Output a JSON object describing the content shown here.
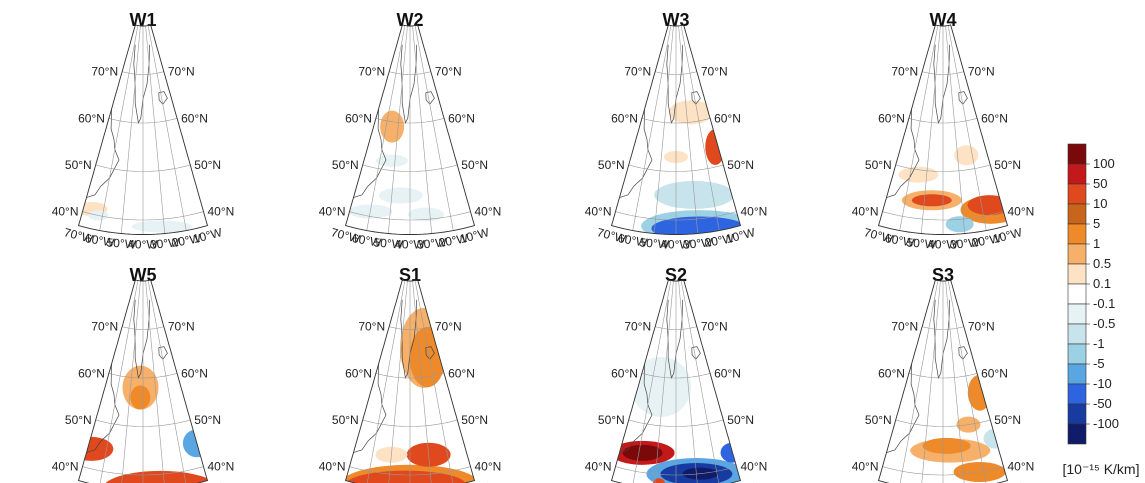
{
  "panels": [
    {
      "id": "W1",
      "title": "W1",
      "row": 0,
      "col": 0,
      "blobs": []
    },
    {
      "id": "W2",
      "title": "W2",
      "row": 0,
      "col": 1,
      "blobs": []
    },
    {
      "id": "W3",
      "title": "W3",
      "row": 0,
      "col": 2,
      "blobs": []
    },
    {
      "id": "W4",
      "title": "W4",
      "row": 0,
      "col": 3,
      "blobs": []
    },
    {
      "id": "W5",
      "title": "W5",
      "row": 1,
      "col": 0,
      "blobs": []
    },
    {
      "id": "S1",
      "title": "S1",
      "row": 1,
      "col": 1,
      "blobs": []
    },
    {
      "id": "S2",
      "title": "S2",
      "row": 1,
      "col": 2,
      "blobs": []
    },
    {
      "id": "S3",
      "title": "S3",
      "row": 1,
      "col": 3,
      "blobs": []
    }
  ],
  "lat_labels": [
    "70°N",
    "60°N",
    "50°N",
    "40°N"
  ],
  "lon_labels": [
    "70°W",
    "60°W",
    "50°W",
    "40°W",
    "30°W",
    "20°W",
    "10°W"
  ],
  "colorbar": {
    "labels": [
      "100",
      "50",
      "10",
      "5",
      "1",
      "0.5",
      "0.1",
      "-0.1",
      "-0.5",
      "-1",
      "-5",
      "-10",
      "-50",
      "-100"
    ],
    "colors": [
      "#7a0a0a",
      "#c4191b",
      "#e0491d",
      "#c8651b",
      "#ee8a2a",
      "#f6b06a",
      "#fde2c4",
      "#ffffff",
      "#e7f2f5",
      "#c7e3ec",
      "#9cd0e4",
      "#5aa6e2",
      "#2f64e1",
      "#173ba0",
      "#101b6a"
    ],
    "unit": "[10⁻¹⁵ K/km]"
  }
}
